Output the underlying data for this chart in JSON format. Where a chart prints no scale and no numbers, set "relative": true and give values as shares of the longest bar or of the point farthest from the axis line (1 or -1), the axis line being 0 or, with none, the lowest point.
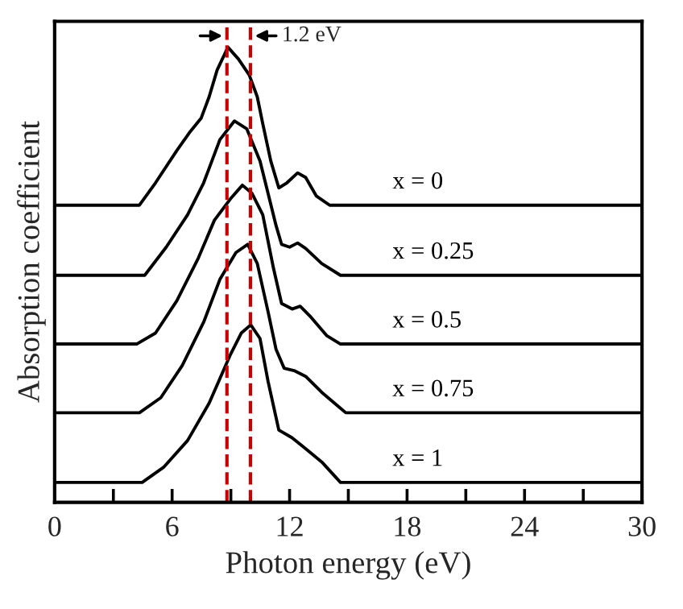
{
  "chart_data": {
    "type": "line",
    "relative": true,
    "xlabel": "Photon energy (eV)",
    "ylabel": "Absorption coefficient",
    "xlim": [
      0,
      30
    ],
    "xticks": [
      0,
      {
        "value": 3,
        "label": null
      },
      6,
      {
        "value": 9,
        "label": null
      },
      12,
      {
        "value": 15,
        "label": null
      },
      18,
      {
        "value": 21,
        "label": null
      },
      24,
      {
        "value": 27,
        "label": null
      },
      30
    ],
    "grid": false,
    "legend": false,
    "marker": "none",
    "line_style": "solid",
    "series": [
      {
        "name": "x = 0",
        "color": "#000000",
        "x": [
          0,
          4.33,
          5.15,
          6.24,
          6.93,
          7.48,
          7.89,
          8.3,
          8.85,
          9.39,
          9.94,
          10.35,
          10.63,
          11.04,
          11.45,
          11.86,
          12.41,
          12.82,
          13.37,
          14.05,
          30
        ],
        "values": [
          0.653,
          0.653,
          0.702,
          0.773,
          0.815,
          0.844,
          0.891,
          0.95,
          1.0,
          0.974,
          0.939,
          0.891,
          0.832,
          0.75,
          0.691,
          0.702,
          0.724,
          0.714,
          0.673,
          0.653,
          0.653
        ]
      },
      {
        "name": "x = 0.25",
        "color": "#000000",
        "x": [
          0,
          4.6,
          5.7,
          6.79,
          7.61,
          8.44,
          9.18,
          9.81,
          10.49,
          10.9,
          11.31,
          11.59,
          12.0,
          12.41,
          12.82,
          13.64,
          14.6,
          30
        ],
        "values": [
          0.499,
          0.499,
          0.561,
          0.632,
          0.702,
          0.797,
          0.838,
          0.821,
          0.75,
          0.679,
          0.608,
          0.567,
          0.561,
          0.57,
          0.558,
          0.525,
          0.499,
          0.499
        ]
      },
      {
        "name": "x = 0.5",
        "color": "#000000",
        "x": [
          0,
          4.19,
          5.15,
          6.24,
          7.34,
          8.16,
          8.98,
          9.59,
          10.08,
          10.63,
          11.18,
          11.59,
          12.13,
          12.54,
          13.09,
          13.91,
          14.6,
          30
        ],
        "values": [
          0.348,
          0.348,
          0.372,
          0.443,
          0.537,
          0.62,
          0.667,
          0.697,
          0.679,
          0.632,
          0.514,
          0.437,
          0.425,
          0.431,
          0.407,
          0.366,
          0.348,
          0.348
        ]
      },
      {
        "name": "x = 0.75",
        "color": "#000000",
        "x": [
          0,
          4.33,
          5.42,
          6.52,
          7.61,
          8.44,
          9.26,
          9.86,
          10.35,
          10.9,
          11.31,
          11.72,
          12.27,
          12.82,
          13.64,
          14.87,
          30
        ],
        "values": [
          0.197,
          0.197,
          0.23,
          0.301,
          0.396,
          0.49,
          0.549,
          0.567,
          0.525,
          0.419,
          0.336,
          0.295,
          0.289,
          0.277,
          0.242,
          0.197,
          0.197
        ]
      },
      {
        "name": "x = 1",
        "color": "#000000",
        "x": [
          0,
          4.47,
          5.56,
          6.79,
          7.89,
          8.98,
          9.53,
          10.02,
          10.49,
          10.9,
          11.45,
          12.13,
          12.82,
          13.64,
          14.6,
          30
        ],
        "values": [
          0.044,
          0.044,
          0.077,
          0.136,
          0.218,
          0.325,
          0.372,
          0.39,
          0.36,
          0.266,
          0.159,
          0.142,
          0.118,
          0.089,
          0.044,
          0.044
        ]
      }
    ],
    "ref_lines": [
      {
        "axis": "x",
        "value": 8.8,
        "color": "#cc0000",
        "line_style": "dashed"
      },
      {
        "axis": "x",
        "value": 10.0,
        "color": "#cc0000",
        "line_style": "dashed"
      }
    ],
    "annotations": [
      "1.2 eV"
    ]
  }
}
